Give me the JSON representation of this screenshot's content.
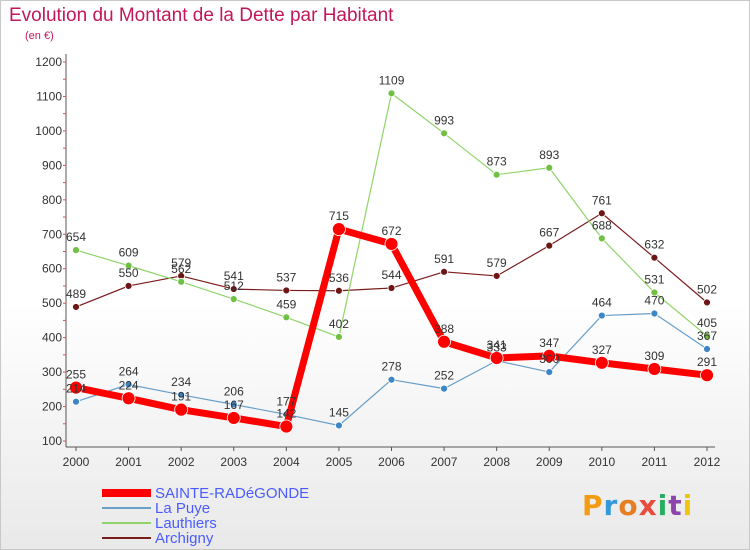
{
  "title": "Evolution du Montant de la Dette par Habitant",
  "unit": "(en €)",
  "brand": {
    "text": "Proxiti",
    "colors": [
      "#f39c12",
      "#3498db",
      "#e67e22",
      "#e74c3c",
      "#27ae60",
      "#8e44ad",
      "#f1c40f"
    ]
  },
  "chart_data": {
    "type": "line",
    "title": "Evolution du Montant de la Dette par Habitant",
    "ylabel": "(en €)",
    "xlabel": "",
    "ylim": [
      100,
      1200
    ],
    "yticks": [
      "100",
      "200",
      "300",
      "400",
      "500",
      "600",
      "700",
      "800",
      "900",
      "1000",
      "1100",
      "1200"
    ],
    "x": [
      "2000",
      "2001",
      "2002",
      "2003",
      "2004",
      "2005",
      "2006",
      "2007",
      "2008",
      "2009",
      "2010",
      "2011",
      "2012"
    ],
    "grid": false,
    "legend_position": "bottom-left",
    "series": [
      {
        "name": "Archigny",
        "color": "#7b1c1c",
        "marker": "#6e1515",
        "width": 1.2,
        "radius": 3.5,
        "values": [
          489,
          550,
          579,
          541,
          537,
          536,
          544,
          591,
          579,
          667,
          761,
          632,
          502
        ]
      },
      {
        "name": "Lauthiers",
        "color": "#8fd46a",
        "marker": "#6fc043",
        "width": 1.2,
        "radius": 3.5,
        "values": [
          654,
          609,
          562,
          512,
          459,
          402,
          1109,
          993,
          873,
          893,
          688,
          531,
          405
        ]
      },
      {
        "name": "La Puye",
        "color": "#6a9fc8",
        "marker": "#3d86c6",
        "width": 1.2,
        "radius": 3.5,
        "values": [
          214,
          264,
          234,
          206,
          177,
          145,
          278,
          252,
          333,
          300,
          464,
          470,
          367
        ]
      },
      {
        "name": "SAINTE-RADéGONDE",
        "color": "#ff0000",
        "marker": "#ff0000",
        "width": 7,
        "radius": 6.5,
        "values": [
          255,
          224,
          191,
          167,
          142,
          715,
          672,
          388,
          341,
          347,
          327,
          309,
          291
        ]
      }
    ],
    "data_labels": [
      [
        "489",
        "550",
        "579",
        "541",
        "537",
        "536",
        "544",
        "591",
        "579",
        "667",
        "761",
        "632",
        "502"
      ],
      [
        "654",
        "609",
        "562",
        "512",
        "459",
        "402",
        "1109",
        "993",
        "873",
        "893",
        "688",
        "531",
        "405"
      ],
      [
        "214",
        "264",
        "234",
        "206",
        "177",
        "145",
        "278",
        "252",
        "333",
        "300",
        "464",
        "470",
        "367"
      ],
      [
        "255",
        "224",
        "191",
        "167",
        "142",
        "715",
        "672",
        "388",
        "341",
        "347",
        "327",
        "309",
        "291"
      ]
    ]
  },
  "legend": [
    {
      "label": "SAINTE-RADéGONDE",
      "color": "#ff0000",
      "text_color": "#4a5cff"
    },
    {
      "label": "La Puye",
      "color": "#6a9fc8",
      "text_color": "#4a5cff"
    },
    {
      "label": "Lauthiers",
      "color": "#8fd46a",
      "text_color": "#4a5cff"
    },
    {
      "label": "Archigny",
      "color": "#7b1c1c",
      "text_color": "#4a5cff"
    }
  ]
}
